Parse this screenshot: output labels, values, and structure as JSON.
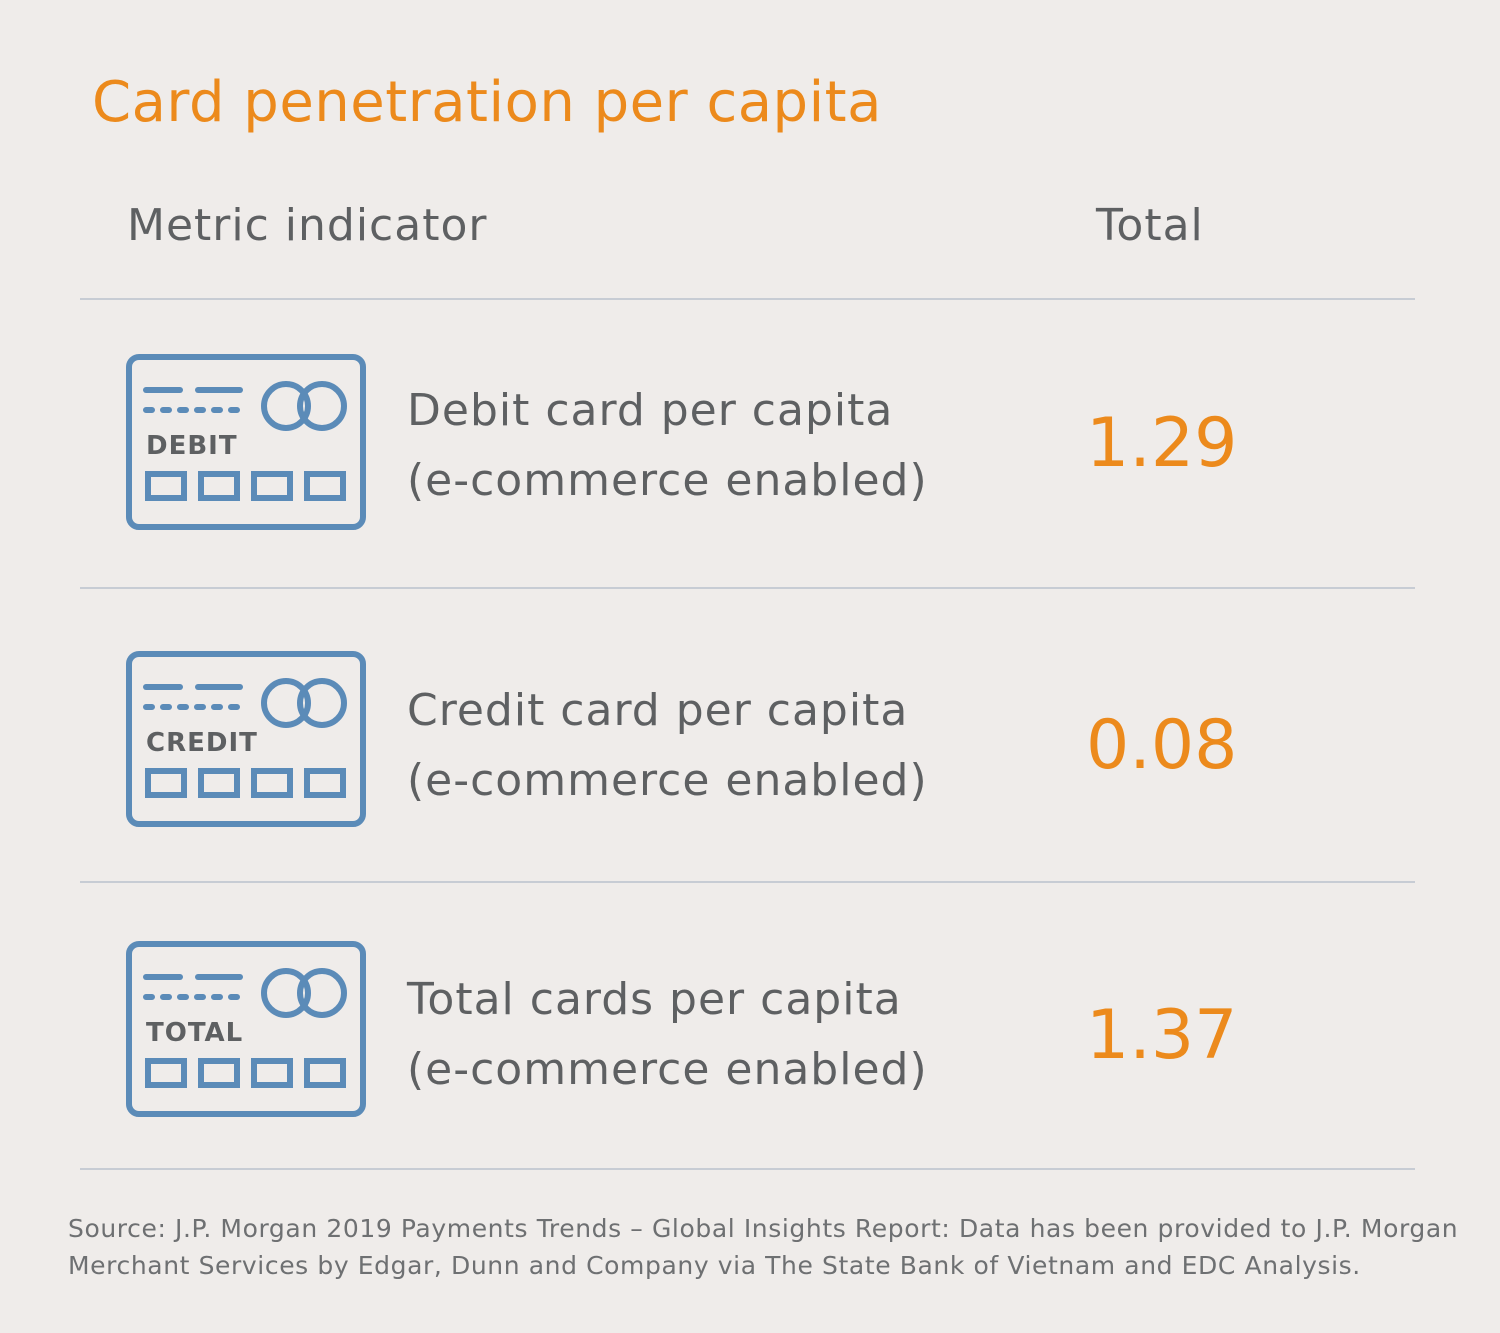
{
  "title": "Card penetration per capita",
  "headers": {
    "metric": "Metric indicator",
    "total": "Total"
  },
  "rows": [
    {
      "card_label": "DEBIT",
      "metric_line1": "Debit card per capita",
      "metric_line2": "(e-commerce enabled)",
      "value": "1.29"
    },
    {
      "card_label": "CREDIT",
      "metric_line1": "Credit card per capita",
      "metric_line2": "(e-commerce enabled)",
      "value": "0.08"
    },
    {
      "card_label": "TOTAL",
      "metric_line1": "Total cards per capita",
      "metric_line2": "(e-commerce enabled)",
      "value": "1.37"
    }
  ],
  "source": "Source: J.P. Morgan 2019 Payments Trends – Global Insights Report: Data has been provided to J.P. Morgan Merchant Services by Edgar, Dunn and Company via The State Bank of Vietnam and EDC Analysis.",
  "icons": {
    "card": "credit-card-icon"
  },
  "colors": {
    "accent": "#ec8a1c",
    "icon": "#5b8bb8",
    "text": "#5e6062",
    "background": "#efecea"
  }
}
